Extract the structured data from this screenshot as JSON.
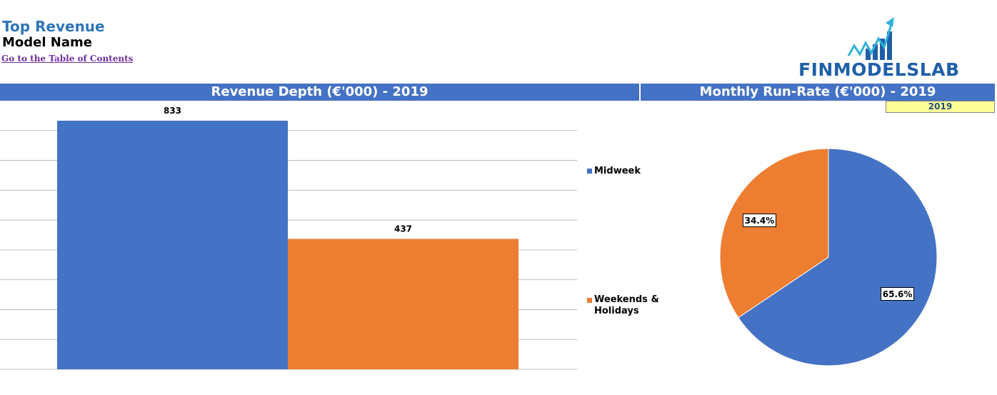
{
  "header": {
    "title": "Top Revenue",
    "subtitle": "Model Name",
    "toc_link": "Go to the Table of Contents",
    "logo_text": "FINMODELSLAB"
  },
  "colors": {
    "accent_blue": "#4472c4",
    "accent_orange": "#ed7d31",
    "title_blue": "#2e75b6",
    "year_box": "#ffff99"
  },
  "selector": {
    "year": "2019"
  },
  "chart_data": [
    {
      "type": "bar",
      "title": "Revenue Depth (€'000) - 2019",
      "categories": [
        "Midweek",
        "Weekends & Holidays"
      ],
      "values": [
        833,
        437
      ],
      "ylim": [
        0,
        900
      ],
      "grid": true,
      "legend": "right",
      "data_labels": [
        "833",
        "437"
      ]
    },
    {
      "type": "pie",
      "title": "Monthly Run-Rate (€'000) - 2019",
      "labels": [
        "Midweek",
        "Weekends & Holidays"
      ],
      "values": [
        65.6,
        34.4
      ],
      "data_labels": [
        "65.6%",
        "34.4%"
      ]
    }
  ],
  "legend": {
    "item1": "Midweek",
    "item2_line1": "Weekends &",
    "item2_line2": "Holidays"
  }
}
